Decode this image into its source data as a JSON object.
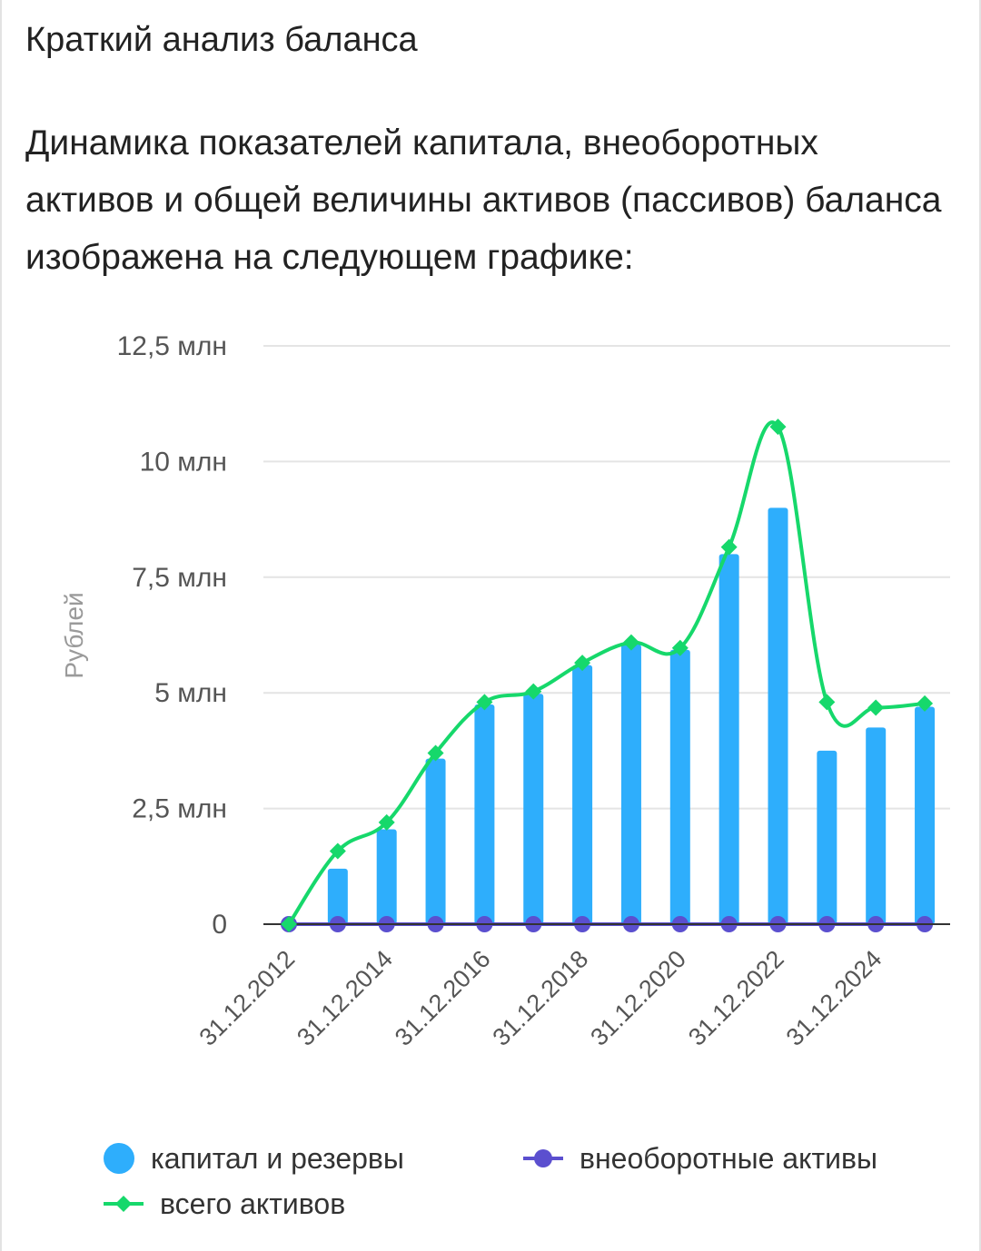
{
  "section_title": "Краткий анализ баланса",
  "intro_text": "Динамика показателей капитала, внеоборотных активов и общей величины активов (пассивов) баланса изображена на следующем графике:",
  "chart_data": {
    "type": "bar",
    "ylabel": "Рублей",
    "ylim": [
      0,
      12500000
    ],
    "yticks": [
      0,
      2500000,
      5000000,
      7500000,
      10000000,
      12500000
    ],
    "ytick_labels": [
      "0",
      "2,5 млн",
      "5 млн",
      "7,5 млн",
      "10 млн",
      "12,5 млн"
    ],
    "categories": [
      "31.12.2012",
      "31.12.2013",
      "31.12.2014",
      "31.12.2015",
      "31.12.2016",
      "31.12.2017",
      "31.12.2018",
      "31.12.2019",
      "31.12.2020",
      "31.12.2021",
      "31.12.2022",
      "31.12.2023",
      "31.12.2024",
      "31.12.2025"
    ],
    "xtick_labels": [
      "31.12.2012",
      "31.12.2014",
      "31.12.2016",
      "31.12.2018",
      "31.12.2020",
      "31.12.2022",
      "31.12.2024"
    ],
    "grid": true,
    "legend_position": "bottom",
    "series": [
      {
        "name": "капитал и резервы",
        "type": "bar",
        "color": "#2eaefc",
        "values": [
          0,
          1200000,
          2050000,
          3580000,
          4750000,
          4980000,
          5600000,
          6050000,
          5930000,
          8000000,
          9000000,
          3750000,
          4250000,
          4700000
        ]
      },
      {
        "name": "внеоборотные активы",
        "type": "line",
        "color": "#5b4fcf",
        "values": [
          0,
          0,
          0,
          0,
          0,
          0,
          0,
          0,
          0,
          0,
          0,
          0,
          0,
          0
        ]
      },
      {
        "name": "всего активов",
        "type": "line",
        "color": "#16d86b",
        "values": [
          0,
          1580000,
          2200000,
          3700000,
          4800000,
          5030000,
          5650000,
          6090000,
          5970000,
          8150000,
          10750000,
          4800000,
          4680000,
          4770000
        ]
      }
    ]
  }
}
